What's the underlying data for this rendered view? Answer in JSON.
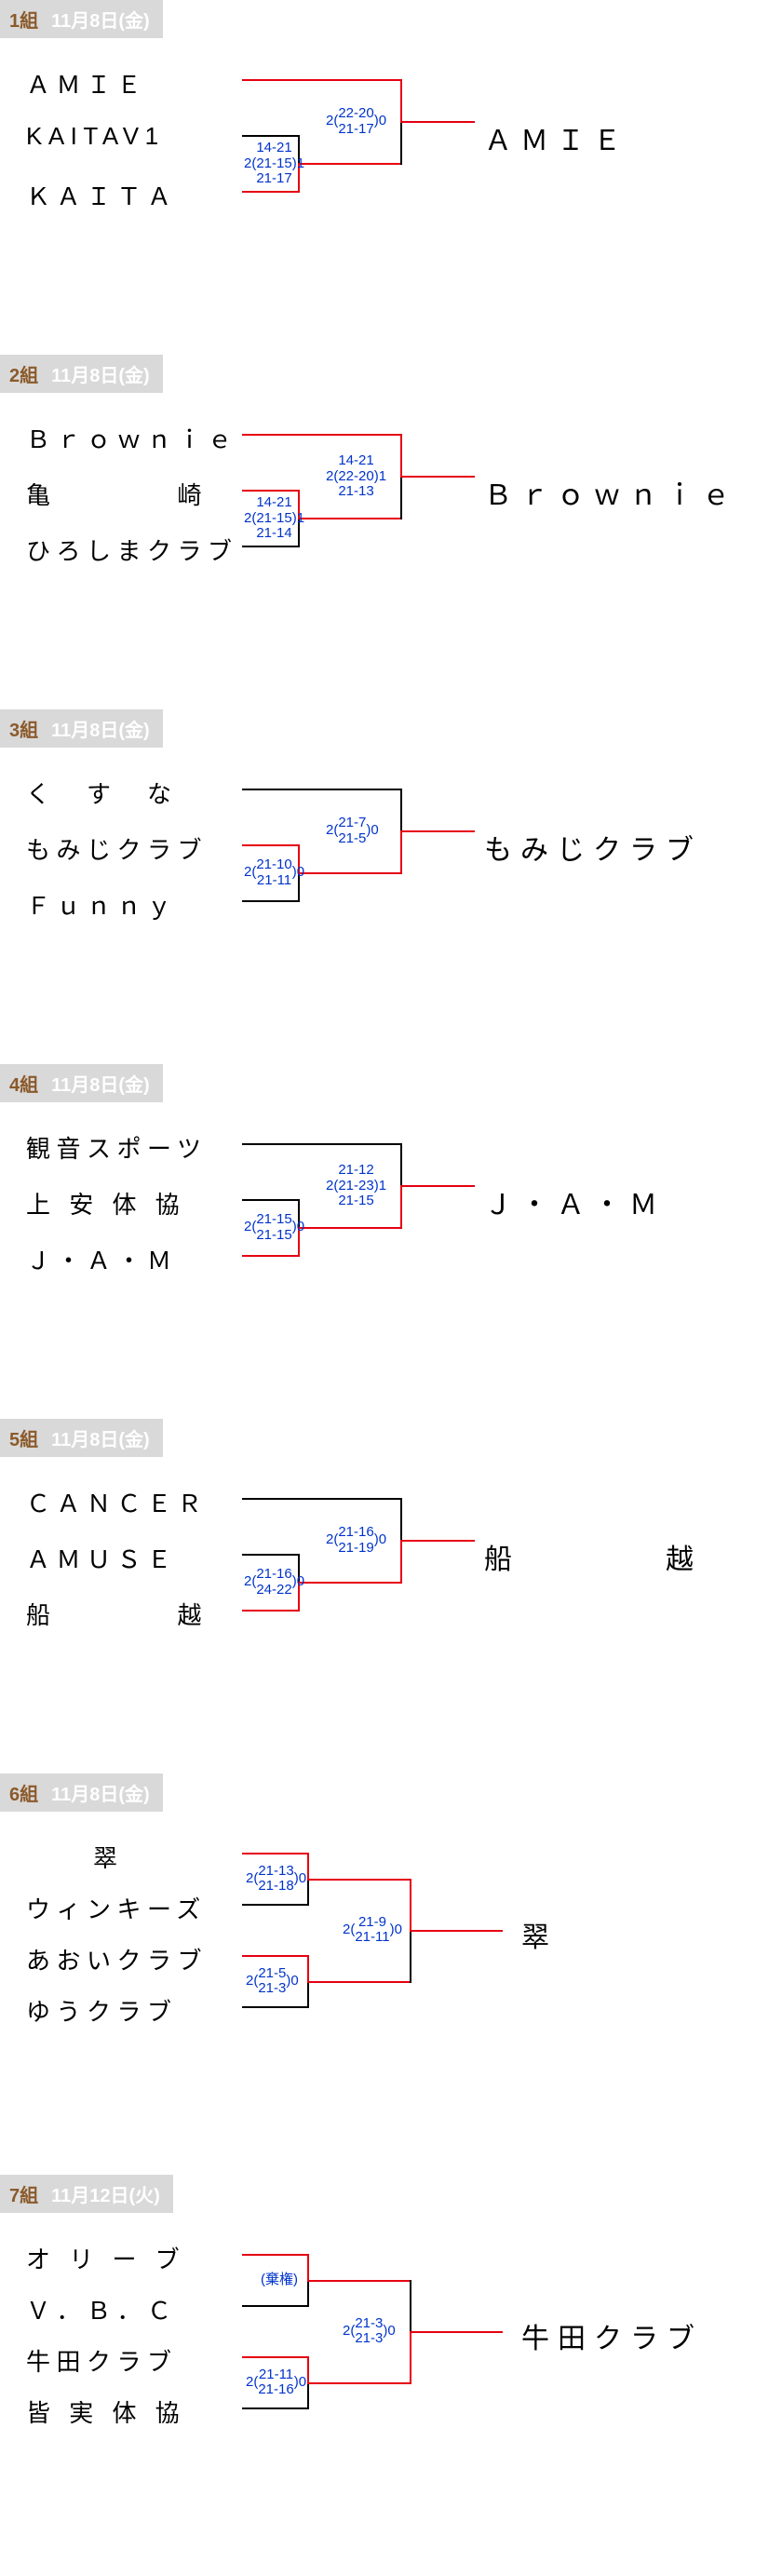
{
  "groups": [
    {
      "num": "1組",
      "date": "11月8日(金)",
      "type": "three",
      "teams": [
        "ＡＭＩＥ",
        "KAITAV1",
        "ＫＡＩＴＡ"
      ],
      "winner": "ＡＭＩＥ",
      "semi_score": "14-21\n2(21-15)1\n21-17",
      "final_score": "22-20\n21-17",
      "final_left": "2(",
      "final_right": ")0",
      "semi_winner_top": false,
      "final_winner_top": true
    },
    {
      "num": "2組",
      "date": "11月8日(金)",
      "type": "three",
      "teams": [
        "Ｂｒｏｗｎｉｅ",
        "亀　　　　崎",
        "ひろしまクラブ"
      ],
      "winner": "Ｂｒｏｗｎｉｅ",
      "semi_score": "14-21\n2(21-15)1\n21-14",
      "final_score": "14-21\n2(22-20)1\n21-13",
      "semi_winner_top": true,
      "final_winner_top": true
    },
    {
      "num": "3組",
      "date": "11月8日(金)",
      "type": "three",
      "teams": [
        "く　す　な",
        "もみじクラブ",
        "Ｆｕｎｎｙ"
      ],
      "winner": "もみじクラブ",
      "semi_score": "21-10\n21-11",
      "semi_left": "2(",
      "semi_right": ")0",
      "final_score": "21-7\n21-5",
      "final_left": "2(",
      "final_right": ")0",
      "semi_winner_top": true,
      "final_winner_top": false
    },
    {
      "num": "4組",
      "date": "11月8日(金)",
      "type": "three",
      "teams": [
        "観音スポーツ",
        "上 安 体 協",
        "Ｊ・Ａ・Ｍ"
      ],
      "winner": "Ｊ・Ａ・Ｍ",
      "semi_score": "21-15\n21-15",
      "semi_left": "2(",
      "semi_right": ")0",
      "final_score": "21-12\n2(21-23)1\n21-15",
      "semi_winner_top": false,
      "final_winner_top": false
    },
    {
      "num": "5組",
      "date": "11月8日(金)",
      "type": "three",
      "teams": [
        "ＣＡＮＣＥＲ",
        "ＡＭＵＳＥ",
        "船　　　　越"
      ],
      "winner": "船　　　　越",
      "semi_score": "21-16\n24-22",
      "semi_left": "2(",
      "semi_right": ")0",
      "final_score": "21-16\n21-19",
      "final_left": "2(",
      "final_right": ")0",
      "semi_winner_top": false,
      "final_winner_top": false
    },
    {
      "num": "6組",
      "date": "11月8日(金)",
      "type": "four",
      "teams": [
        "翠",
        "ウィンキーズ",
        "あおいクラブ",
        "ゆうクラブ"
      ],
      "winner": "翠",
      "semi1_score": "21-13\n21-18",
      "semi1_left": "2(",
      "semi1_right": ")0",
      "semi2_score": "21-5\n21-3",
      "semi2_left": "2(",
      "semi2_right": ")0",
      "final_score": "21-9\n21-11",
      "final_left": "2(",
      "final_right": ")0",
      "semi1_winner_top": true,
      "semi2_winner_top": true,
      "final_winner_top": true
    },
    {
      "num": "7組",
      "date": "11月12日(火)",
      "type": "four",
      "teams": [
        "オ リ ー ブ",
        "Ｖ．Ｂ．Ｃ",
        "牛田クラブ",
        "皆 実 体 協"
      ],
      "winner": "牛田クラブ",
      "semi1_text": "(棄権)",
      "semi2_score": "21-11\n21-16",
      "semi2_left": "2(",
      "semi2_right": ")0",
      "final_score": "21-3\n21-3",
      "final_left": "2(",
      "final_right": ")0",
      "semi1_winner_top": true,
      "semi2_winner_top": true,
      "final_winner_top": false
    }
  ],
  "colors": {
    "red": "#e60012",
    "black": "#000000",
    "score": "#0033cc",
    "header_bg": "#d9d9d9",
    "gnum_color": "#8b5a2b"
  }
}
